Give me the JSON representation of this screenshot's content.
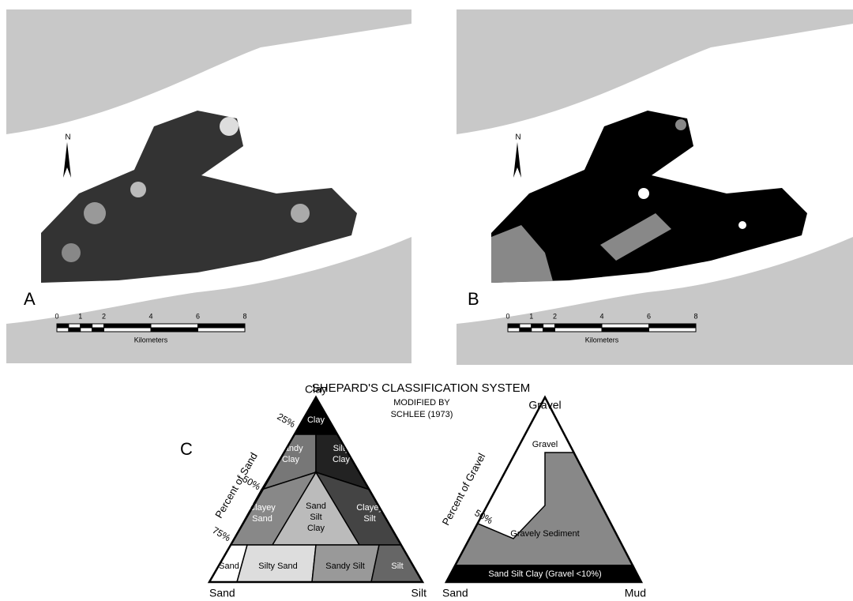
{
  "panels": [
    {
      "label": "A",
      "north": "N",
      "scale": {
        "ticks": [
          "0",
          "1",
          "2",
          "4",
          "6",
          "8"
        ],
        "unit": "Kilometers"
      }
    },
    {
      "label": "B",
      "north": "N",
      "scale": {
        "ticks": [
          "0",
          "1",
          "2",
          "4",
          "6",
          "8"
        ],
        "unit": "Kilometers"
      }
    }
  ],
  "diagram": {
    "label": "C",
    "title": "SHEPARD'S CLASSIFICATION SYSTEM",
    "subtitle": [
      "MODIFIED BY",
      "SCHLEE (1973)"
    ],
    "texture": {
      "vertices": {
        "top": "Clay",
        "left": "Sand",
        "right": "Silt"
      },
      "axis_label": "Percent of Sand",
      "axis_ticks": [
        "25%",
        "50%",
        "75%"
      ],
      "regions": [
        {
          "lines": [
            "Clay"
          ]
        },
        {
          "lines": [
            "Sandy",
            "Clay"
          ]
        },
        {
          "lines": [
            "Silty",
            "Clay"
          ]
        },
        {
          "lines": [
            "Clayey",
            "Sand"
          ]
        },
        {
          "lines": [
            "Sand",
            "Silt",
            "Clay"
          ]
        },
        {
          "lines": [
            "Clayey",
            "Silt"
          ]
        },
        {
          "lines": [
            "Sand"
          ]
        },
        {
          "lines": [
            "Silty Sand"
          ]
        },
        {
          "lines": [
            "Sandy Silt"
          ]
        },
        {
          "lines": [
            "Silt"
          ]
        }
      ]
    },
    "gravel": {
      "vertices": {
        "top": "Gravel",
        "left": "Sand",
        "right": "Mud"
      },
      "axis_label": "Percent of Gravel",
      "axis_tick": "50%",
      "regions": [
        {
          "lines": [
            "Gravel"
          ]
        },
        {
          "lines": [
            "Gravely Sediment"
          ]
        },
        {
          "lines": [
            "Sand Silt Clay (Gravel <10%)"
          ]
        }
      ]
    }
  }
}
